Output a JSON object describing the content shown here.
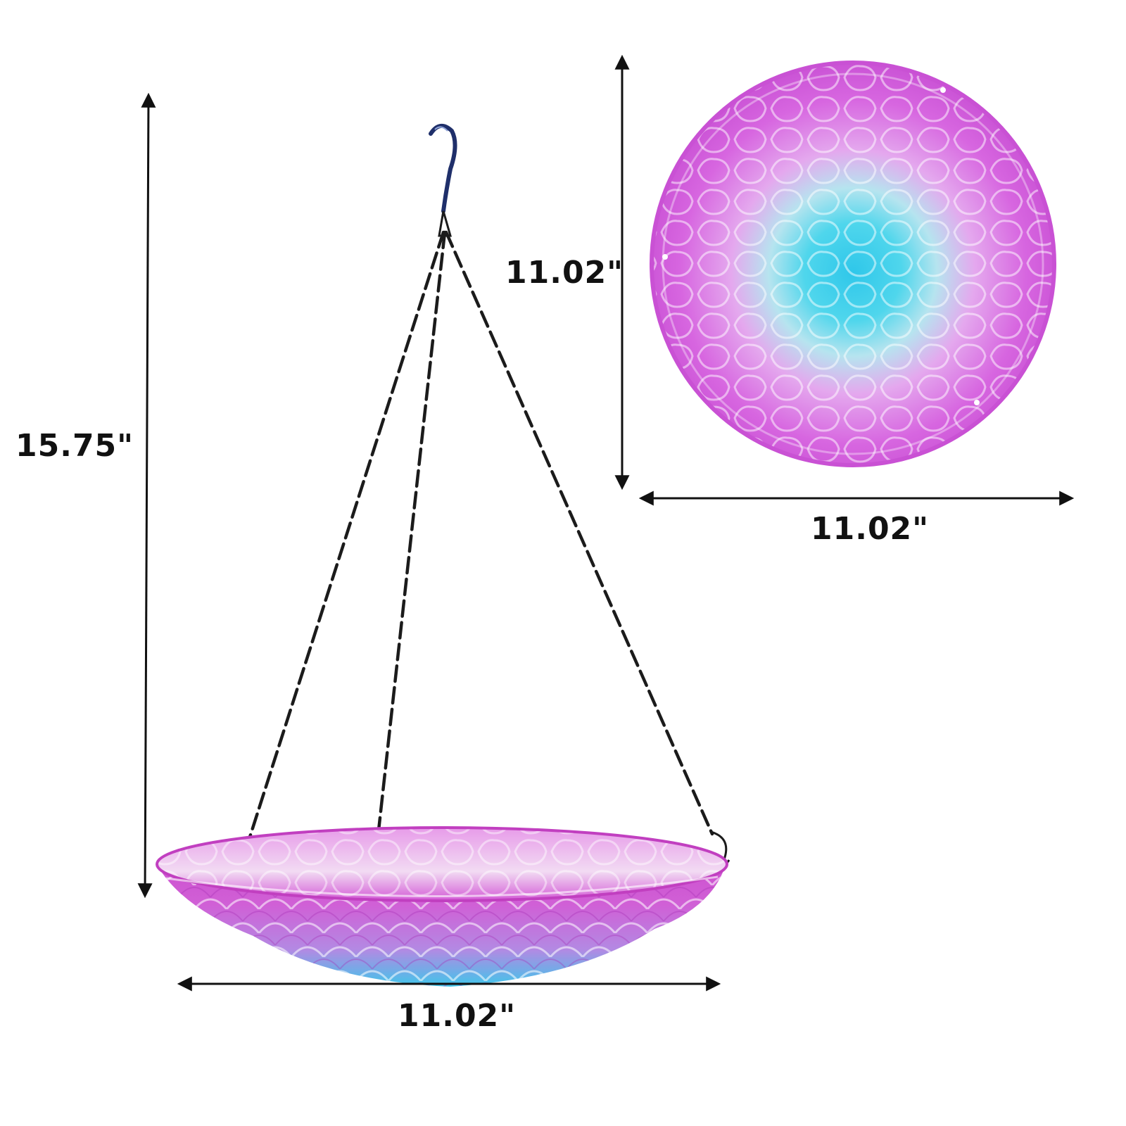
{
  "dimensions": {
    "overall_height": "15.75\"",
    "top_view_diameter": "11.02\"",
    "top_view_width": "11.02\"",
    "basin_width": "11.02\""
  },
  "colors": {
    "background": "#ffffff",
    "glass_rim": "#c13fc0",
    "glass_body": "#e08ae8",
    "glass_center": "#3fd2e9",
    "chain": "#1b1b1b",
    "dimension_line": "#111111",
    "label_text": "#111111"
  },
  "icons": {
    "hook": "s-hook-icon",
    "chain": "chain-icon"
  }
}
